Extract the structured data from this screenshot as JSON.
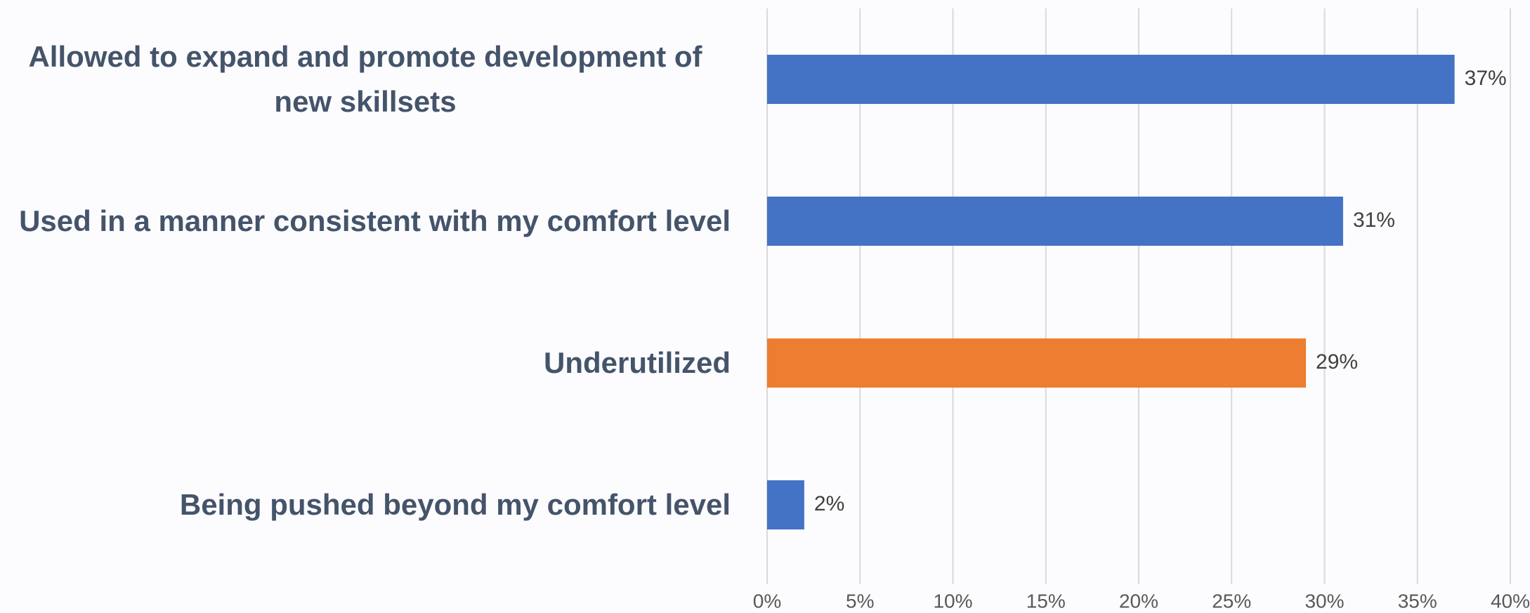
{
  "chart_data": {
    "type": "bar",
    "orientation": "horizontal",
    "categories": [
      "Allowed to expand and promote development of new skillsets",
      "Used in a manner consistent with my comfort level",
      "Underutilized",
      "Being pushed beyond my comfort level"
    ],
    "values": [
      37,
      31,
      29,
      2
    ],
    "value_labels": [
      "37%",
      "31%",
      "29%",
      "2%"
    ],
    "colors": [
      "#4472c4",
      "#4472c4",
      "#ed7d31",
      "#4472c4"
    ],
    "xlim": [
      0,
      40
    ],
    "xticks": [
      {
        "value": 0,
        "label": "0%"
      },
      {
        "value": 5,
        "label": "5%"
      },
      {
        "value": 10,
        "label": "10%"
      },
      {
        "value": 15,
        "label": "15%"
      },
      {
        "value": 20,
        "label": "20%"
      },
      {
        "value": 25,
        "label": "25%"
      },
      {
        "value": 30,
        "label": "30%"
      },
      {
        "value": 35,
        "label": "35%"
      },
      {
        "value": 40,
        "label": "40%"
      }
    ],
    "grid": true
  }
}
